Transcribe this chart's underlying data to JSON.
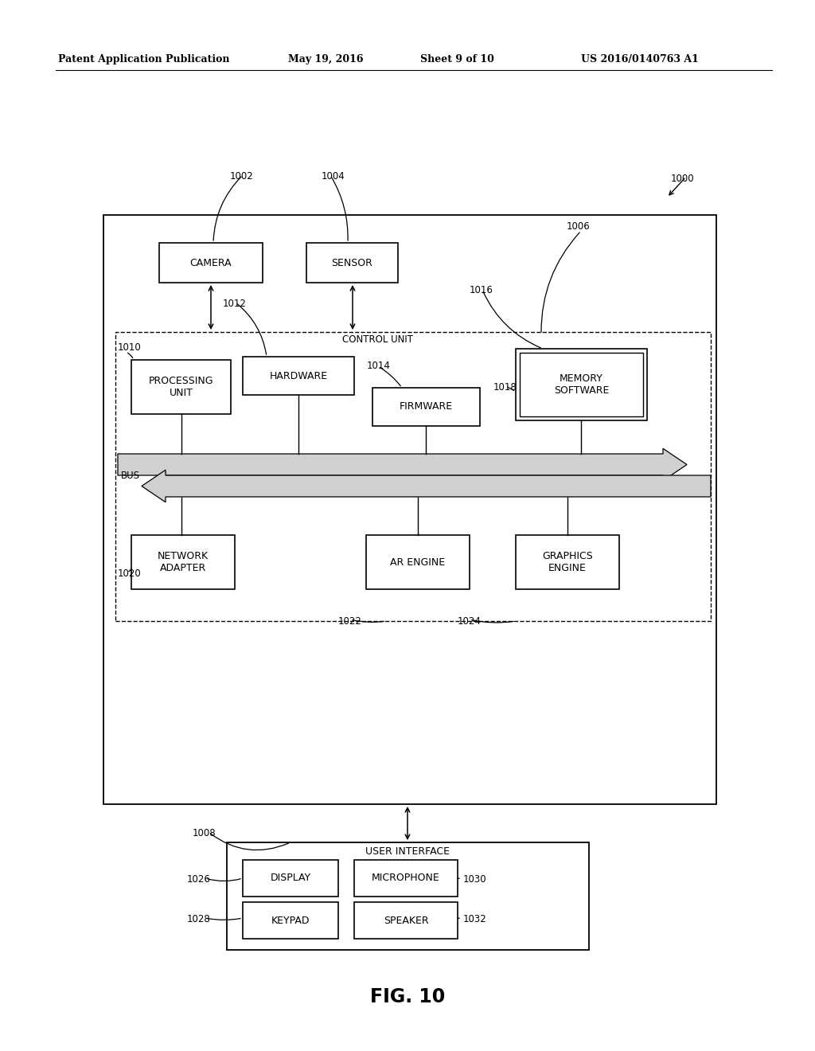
{
  "title_header": "Patent Application Publication",
  "title_date": "May 19, 2016",
  "title_sheet": "Sheet 9 of 10",
  "title_patent": "US 2016/0140763 A1",
  "fig_label": "FIG. 10",
  "bg_color": "#ffffff",
  "labels": {
    "camera": "CAMERA",
    "sensor": "SENSOR",
    "control_unit": "CONTROL UNIT",
    "hardware": "HARDWARE",
    "firmware": "FIRMWARE",
    "memory_software": "MEMORY\nSOFTWARE",
    "processing_unit": "PROCESSING\nUNIT",
    "network_adapter": "NETWORK\nADAPTER",
    "ar_engine": "AR ENGINE",
    "graphics_engine": "GRAPHICS\nENGINE",
    "user_interface": "USER INTERFACE",
    "display": "DISPLAY",
    "microphone": "MICROPHONE",
    "keypad": "KEYPAD",
    "speaker": "SPEAKER",
    "bus": "BUS"
  },
  "ref_nums": {
    "n1000": "1000",
    "n1002": "1002",
    "n1004": "1004",
    "n1006": "1006",
    "n1008": "1008",
    "n1010": "1010",
    "n1012": "1012",
    "n1014": "1014",
    "n1016": "1016",
    "n1018": "1018",
    "n1020": "1020",
    "n1022": "1022",
    "n1024": "1024",
    "n1026": "1026",
    "n1028": "1028",
    "n1030": "1030",
    "n1032": "1032"
  }
}
